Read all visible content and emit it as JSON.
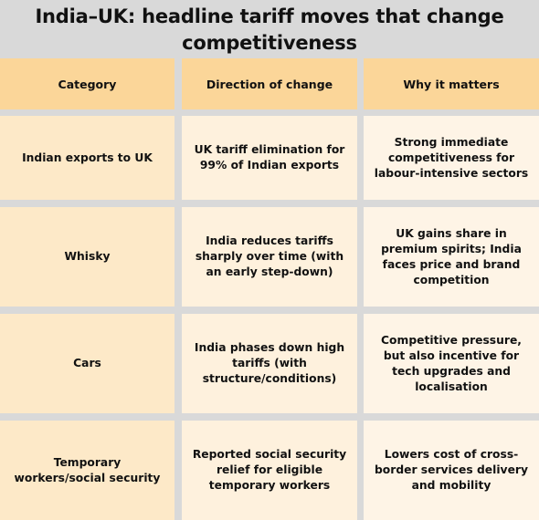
{
  "title": "India–UK: headline tariff moves that change competitiveness",
  "headers": [
    "Category",
    "Direction of change",
    "Why it matters"
  ],
  "rows": [
    {
      "category": "Indian exports to UK",
      "direction": "UK tariff elimination for 99% of Indian exports",
      "why": "Strong immediate competitiveness for labour-intensive sectors"
    },
    {
      "category": "Whisky",
      "direction": "India reduces tariffs sharply over time (with an early step-down)",
      "why": "UK gains share in premium spirits; India faces price and brand competition"
    },
    {
      "category": "Cars",
      "direction": "India phases down high tariffs (with structure/conditions)",
      "why": "Competitive pressure, but also incentive for tech upgrades and localisation"
    },
    {
      "category": "Temporary workers/social security",
      "direction": "Reported social security relief for eligible temporary workers",
      "why": "Lowers cost of cross-border services delivery and mobility"
    }
  ],
  "colors": {
    "background": "#d9d9d9",
    "header_fill": "#fbd699",
    "category_fill": "#fde9c8",
    "direction_fill": "#fef1dd",
    "why_fill": "#fef4e6"
  }
}
